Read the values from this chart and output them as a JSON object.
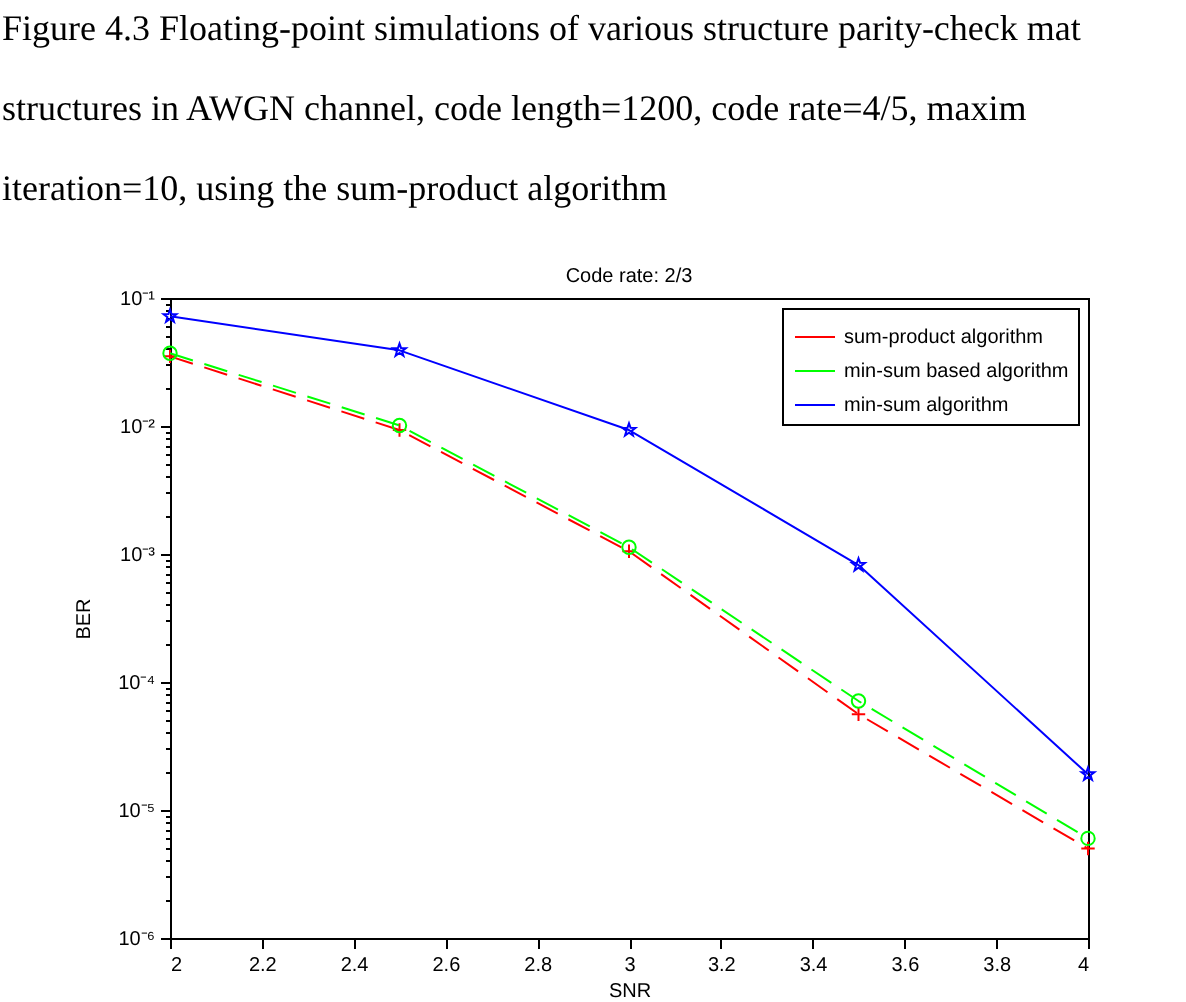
{
  "chart_data": {
    "type": "line",
    "title": "Code rate: 2/3",
    "xlabel": "SNR",
    "ylabel": "BER",
    "annotations": [
      "Figure 4.3 Floating-point simulations of various structure parity-check mat",
      "structures in AWGN channel, code length=1200, code rate=4/5, maxim",
      "iteration=10, using the sum-product algorithm"
    ],
    "x": [
      2,
      2.5,
      3,
      3.5,
      4
    ],
    "series": [
      {
        "name": "sum-product algorithm",
        "color": "#ff0000",
        "marker": "cross",
        "line_style": "dashed",
        "values": [
          0.035,
          0.0093,
          0.00105,
          5.6e-05,
          5e-06
        ]
      },
      {
        "name": "min-sum based algorithm",
        "color": "#00ff00",
        "marker": "circle",
        "line_style": "dashed",
        "values": [
          0.037,
          0.0101,
          0.00113,
          7.1e-05,
          6e-06
        ]
      },
      {
        "name": "min-sum algorithm",
        "color": "#0000ff",
        "marker": "star",
        "line_style": "solid",
        "values": [
          0.072,
          0.039,
          0.0093,
          0.00082,
          1.9e-05
        ]
      }
    ],
    "xlim": [
      2,
      4
    ],
    "xticks": [
      2,
      2.2,
      2.4,
      2.6,
      2.8,
      3,
      3.2,
      3.4,
      3.6,
      3.8,
      4
    ],
    "ylim": [
      1e-06,
      0.1
    ],
    "yticks": [
      {
        "value": 1e-06,
        "label": "10⁻⁶"
      },
      {
        "value": 2e-06,
        "label": null
      },
      {
        "value": 3e-06,
        "label": null
      },
      {
        "value": 4e-06,
        "label": null
      },
      {
        "value": 5e-06,
        "label": null
      },
      {
        "value": 6e-06,
        "label": null
      },
      {
        "value": 7e-06,
        "label": null
      },
      {
        "value": 8e-06,
        "label": null
      },
      {
        "value": 9e-06,
        "label": null
      },
      {
        "value": 1e-05,
        "label": "10⁻⁵"
      },
      {
        "value": 2e-05,
        "label": null
      },
      {
        "value": 3e-05,
        "label": null
      },
      {
        "value": 4e-05,
        "label": null
      },
      {
        "value": 5e-05,
        "label": null
      },
      {
        "value": 6e-05,
        "label": null
      },
      {
        "value": 7e-05,
        "label": null
      },
      {
        "value": 8e-05,
        "label": null
      },
      {
        "value": 9e-05,
        "label": null
      },
      {
        "value": 0.0001,
        "label": "10⁻⁴"
      },
      {
        "value": 0.0002,
        "label": null
      },
      {
        "value": 0.0003,
        "label": null
      },
      {
        "value": 0.0004,
        "label": null
      },
      {
        "value": 0.0005,
        "label": null
      },
      {
        "value": 0.0006,
        "label": null
      },
      {
        "value": 0.0007,
        "label": null
      },
      {
        "value": 0.0008,
        "label": null
      },
      {
        "value": 0.0009,
        "label": null
      },
      {
        "value": 0.001,
        "label": "10⁻³"
      },
      {
        "value": 0.002,
        "label": null
      },
      {
        "value": 0.003,
        "label": null
      },
      {
        "value": 0.004,
        "label": null
      },
      {
        "value": 0.005,
        "label": null
      },
      {
        "value": 0.006,
        "label": null
      },
      {
        "value": 0.007,
        "label": null
      },
      {
        "value": 0.008,
        "label": null
      },
      {
        "value": 0.009,
        "label": null
      },
      {
        "value": 0.01,
        "label": "10⁻²"
      },
      {
        "value": 0.02,
        "label": null
      },
      {
        "value": 0.03,
        "label": null
      },
      {
        "value": 0.04,
        "label": null
      },
      {
        "value": 0.05,
        "label": null
      },
      {
        "value": 0.06,
        "label": null
      },
      {
        "value": 0.07,
        "label": null
      },
      {
        "value": 0.08,
        "label": null
      },
      {
        "value": 0.09,
        "label": null
      },
      {
        "value": 0.1,
        "label": "10⁻¹"
      }
    ],
    "log": "y",
    "grid": false,
    "legend": "top right"
  }
}
